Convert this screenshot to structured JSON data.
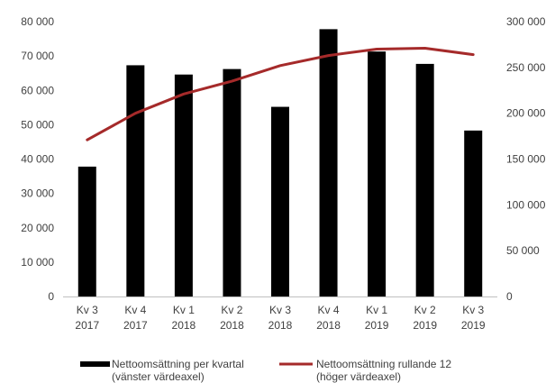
{
  "chart_data": {
    "type": "bar",
    "categories": [
      [
        "Kv 3",
        "2017"
      ],
      [
        "Kv 4",
        "2017"
      ],
      [
        "Kv 1",
        "2018"
      ],
      [
        "Kv 2",
        "2018"
      ],
      [
        "Kv 3",
        "2018"
      ],
      [
        "Kv 4",
        "2018"
      ],
      [
        "Kv 1",
        "2019"
      ],
      [
        "Kv 2",
        "2019"
      ],
      [
        "Kv 3",
        "2019"
      ]
    ],
    "series": [
      {
        "name": [
          "Nettoomsättning per kvartal",
          "(vänster värdeaxel)"
        ],
        "type": "bar",
        "axis": "left",
        "color": "#000000",
        "values": [
          37800,
          67300,
          64600,
          66200,
          55200,
          77800,
          71300,
          67700,
          48300
        ]
      },
      {
        "name": [
          "Nettoomsättning rullande 12",
          "(höger värdeaxel)"
        ],
        "type": "line",
        "axis": "right",
        "color": "#A52A2A",
        "values": [
          171000,
          200000,
          221000,
          235000,
          252000,
          263000,
          270000,
          271000,
          264000
        ]
      }
    ],
    "left_axis": {
      "ylim": [
        0,
        80000
      ],
      "ticks": [
        0,
        10000,
        20000,
        30000,
        40000,
        50000,
        60000,
        70000,
        80000
      ],
      "tick_labels": [
        "0",
        "10 000",
        "20 000",
        "30 000",
        "40 000",
        "50 000",
        "60 000",
        "70 000",
        "80 000"
      ]
    },
    "right_axis": {
      "ylim": [
        0,
        300000
      ],
      "ticks": [
        0,
        50000,
        100000,
        150000,
        200000,
        250000,
        300000
      ],
      "tick_labels": [
        "0",
        "50 000",
        "100 000",
        "150 000",
        "200 000",
        "250 000",
        "300 000"
      ]
    },
    "grid": false,
    "legend_position": "bottom"
  }
}
